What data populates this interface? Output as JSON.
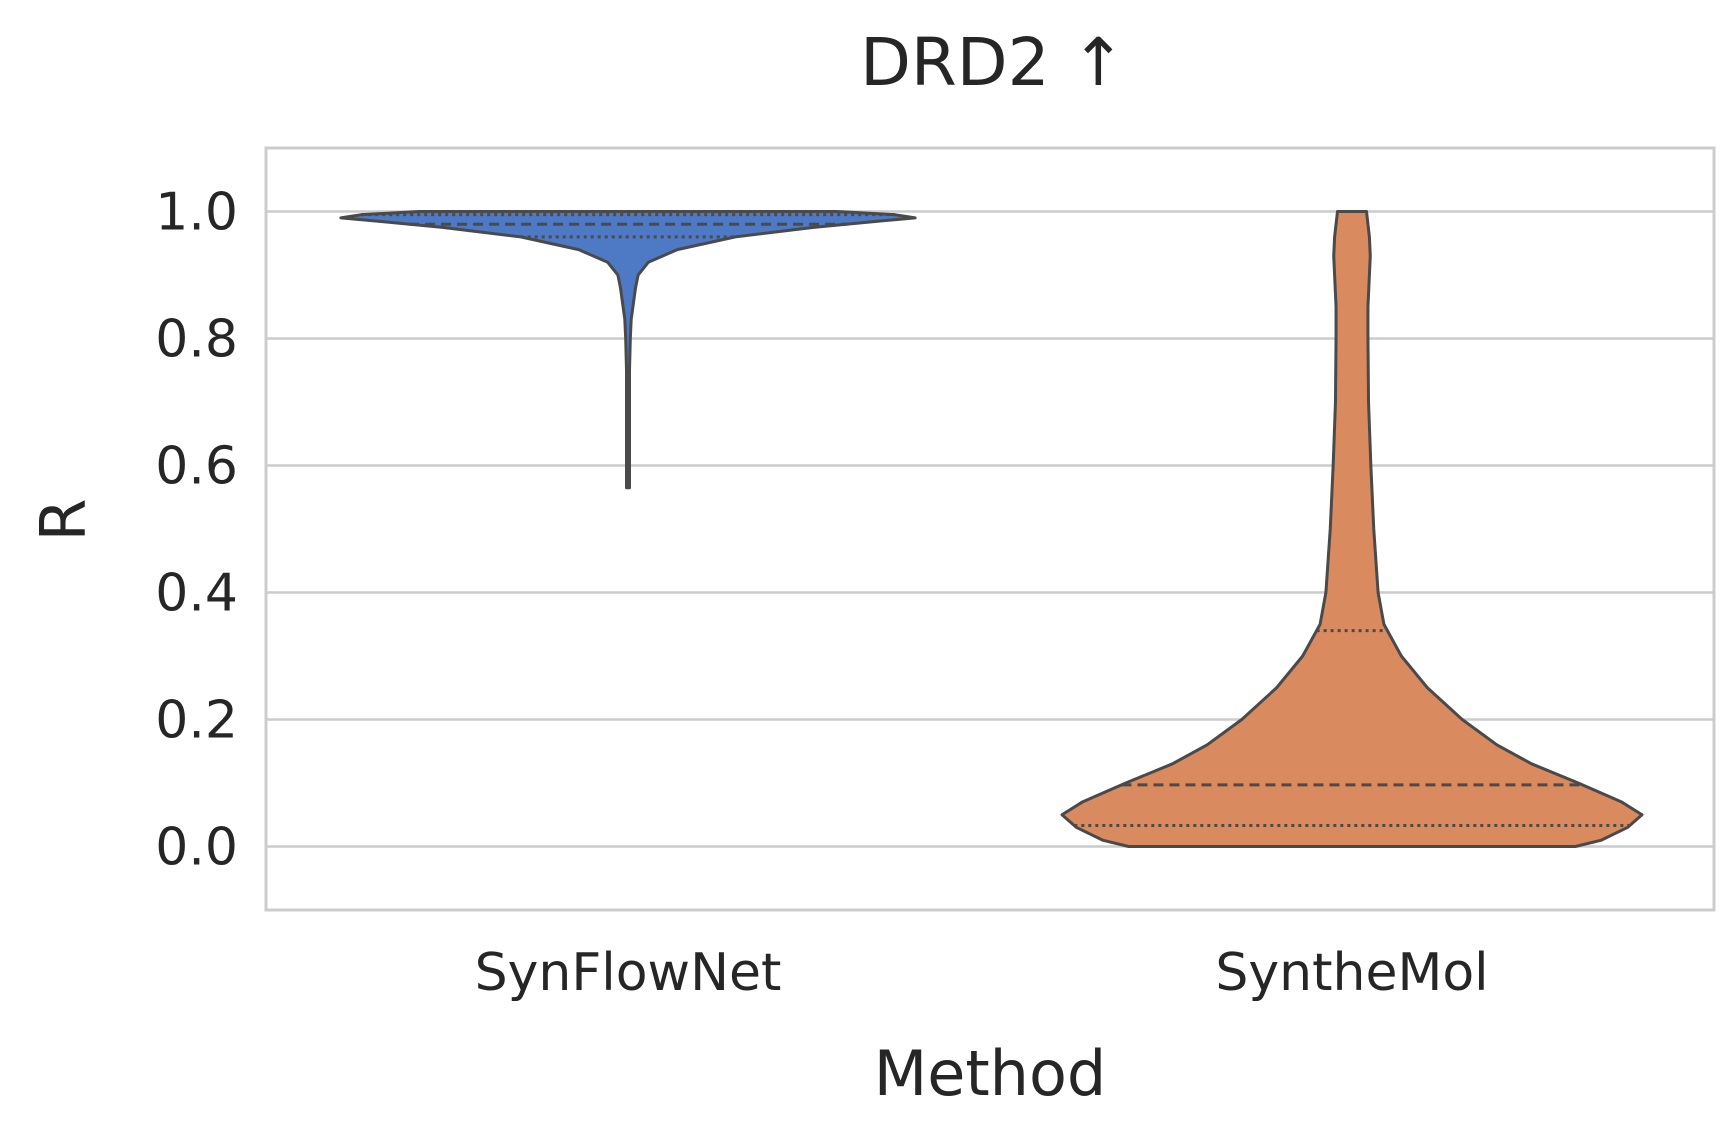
{
  "chart_data": {
    "type": "violin",
    "title": "DRD2 ↑",
    "xlabel": "Method",
    "ylabel": "R",
    "ylim": [
      -0.1,
      1.1
    ],
    "yticks": [
      0.0,
      0.2,
      0.4,
      0.6,
      0.8,
      1.0
    ],
    "ytick_labels": [
      "0.0",
      "0.2",
      "0.4",
      "0.6",
      "0.8",
      "1.0"
    ],
    "grid": "horizontal",
    "categories": [
      "SynFlowNet",
      "SyntheMol"
    ],
    "series": [
      {
        "category": "SynFlowNet",
        "color": "#4e79c4",
        "min": 0.565,
        "max": 1.0,
        "q1": 0.96,
        "median": 0.98,
        "q3": 0.995,
        "density": [
          [
            0.565,
            0.001
          ],
          [
            0.6,
            0.003
          ],
          [
            0.65,
            0.003
          ],
          [
            0.7,
            0.004
          ],
          [
            0.75,
            0.005
          ],
          [
            0.8,
            0.008
          ],
          [
            0.83,
            0.011
          ],
          [
            0.86,
            0.02
          ],
          [
            0.88,
            0.026
          ],
          [
            0.9,
            0.035
          ],
          [
            0.92,
            0.07
          ],
          [
            0.94,
            0.17
          ],
          [
            0.96,
            0.37
          ],
          [
            0.975,
            0.64
          ],
          [
            0.985,
            0.87
          ],
          [
            0.99,
            0.99
          ],
          [
            0.995,
            0.92
          ],
          [
            1.0,
            0.72
          ]
        ]
      },
      {
        "category": "SyntheMol",
        "color": "#d98b5f",
        "min": 0.0,
        "max": 1.0,
        "q1": 0.033,
        "median": 0.097,
        "q3": 0.34,
        "density": [
          [
            0.0,
            0.77
          ],
          [
            0.01,
            0.86
          ],
          [
            0.03,
            0.95
          ],
          [
            0.05,
            1.0
          ],
          [
            0.07,
            0.93
          ],
          [
            0.1,
            0.78
          ],
          [
            0.13,
            0.62
          ],
          [
            0.16,
            0.5
          ],
          [
            0.2,
            0.38
          ],
          [
            0.25,
            0.26
          ],
          [
            0.3,
            0.17
          ],
          [
            0.35,
            0.11
          ],
          [
            0.4,
            0.09
          ],
          [
            0.5,
            0.075
          ],
          [
            0.6,
            0.065
          ],
          [
            0.7,
            0.057
          ],
          [
            0.8,
            0.055
          ],
          [
            0.85,
            0.055
          ],
          [
            0.9,
            0.06
          ],
          [
            0.93,
            0.063
          ],
          [
            0.96,
            0.06
          ],
          [
            0.98,
            0.055
          ],
          [
            1.0,
            0.05
          ]
        ]
      }
    ]
  }
}
